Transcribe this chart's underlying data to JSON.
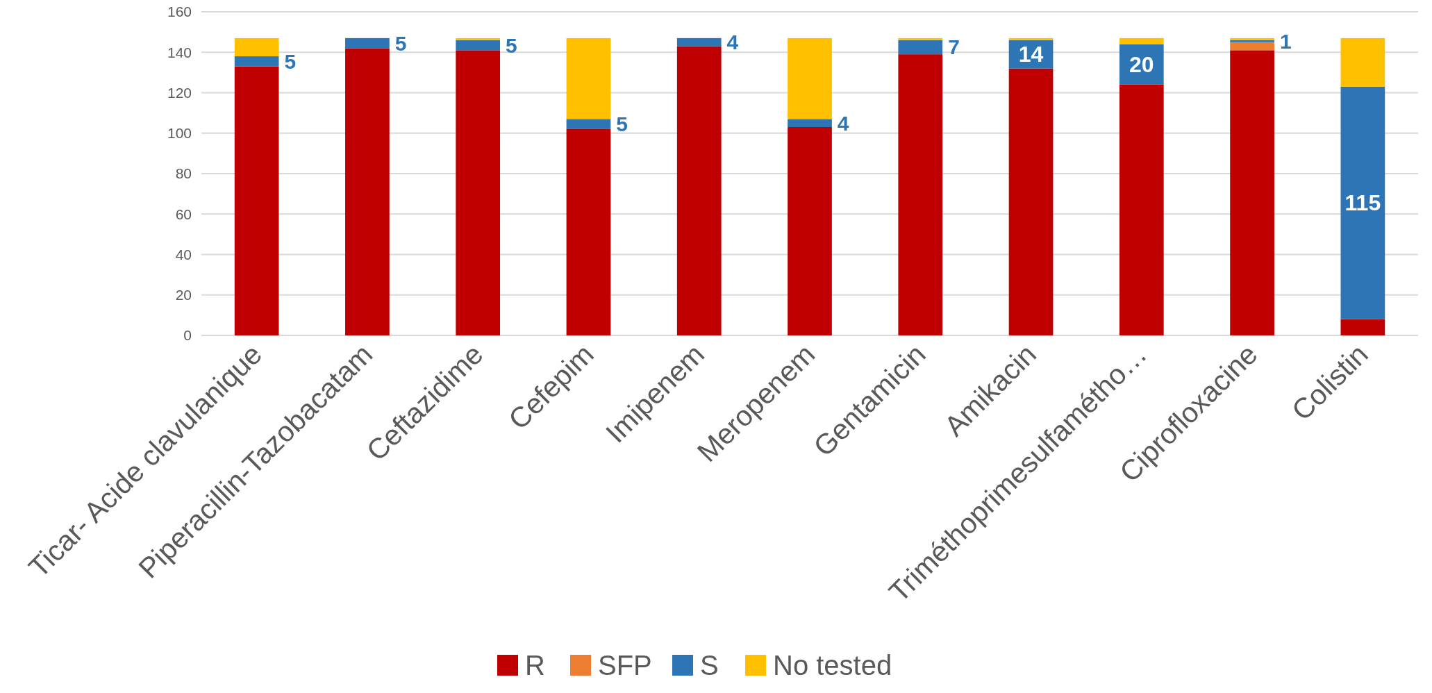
{
  "chart_data": {
    "type": "bar",
    "stacked": true,
    "categories": [
      "Ticar- Acide clavulanique",
      "Piperacillin-Tazobacatam",
      "Ceftazidime",
      "Cefepim",
      "Imipenem",
      "Meropenem",
      "Gentamicin",
      "Amikacin",
      "Triméthoprimesulfamétho…",
      "Ciprofloxacine",
      "Colistin"
    ],
    "series": [
      {
        "name": "R",
        "color": "#c00000",
        "values": [
          133,
          142,
          141,
          102,
          143,
          103,
          139,
          132,
          124,
          141,
          8
        ]
      },
      {
        "name": "SFP",
        "color": "#ed7d31",
        "values": [
          0,
          0,
          0,
          0,
          0,
          0,
          0,
          0,
          0,
          4,
          0
        ]
      },
      {
        "name": "S",
        "color": "#2e75b6",
        "values": [
          5,
          5,
          5,
          5,
          4,
          4,
          7,
          14,
          20,
          1,
          115
        ],
        "value_labels": [
          "5",
          "5",
          "5",
          "5",
          "4",
          "4",
          "7",
          "14",
          "20",
          "1",
          "115"
        ]
      },
      {
        "name": "No tested",
        "color": "#ffc000",
        "values": [
          9,
          0,
          1,
          40,
          0,
          40,
          1,
          1,
          3,
          1,
          24
        ]
      }
    ],
    "ylim": [
      0,
      160
    ],
    "yticks": [
      0,
      20,
      40,
      60,
      80,
      100,
      120,
      140,
      160
    ],
    "grid": "y",
    "legend": "bottom"
  }
}
